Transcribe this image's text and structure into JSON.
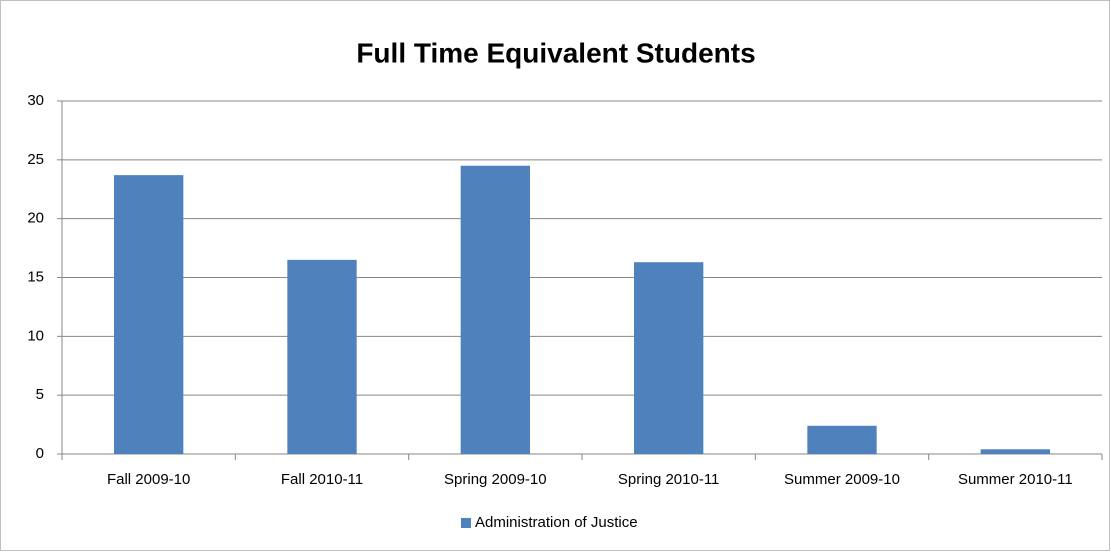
{
  "chart_data": {
    "type": "bar",
    "title": "Full Time Equivalent Students",
    "categories": [
      "Fall 2009-10",
      "Fall 2010-11",
      "Spring 2009-10",
      "Spring 2010-11",
      "Summer 2009-10",
      "Summer 2010-11"
    ],
    "series": [
      {
        "name": "Administration of Justice",
        "color": "#4f81bd",
        "values": [
          23.7,
          16.5,
          24.5,
          16.3,
          2.4,
          0.4
        ]
      }
    ],
    "ylim": [
      0,
      30
    ],
    "yticks": [
      0,
      5,
      10,
      15,
      20,
      25,
      30
    ],
    "grid": true,
    "legend": "bottom"
  }
}
